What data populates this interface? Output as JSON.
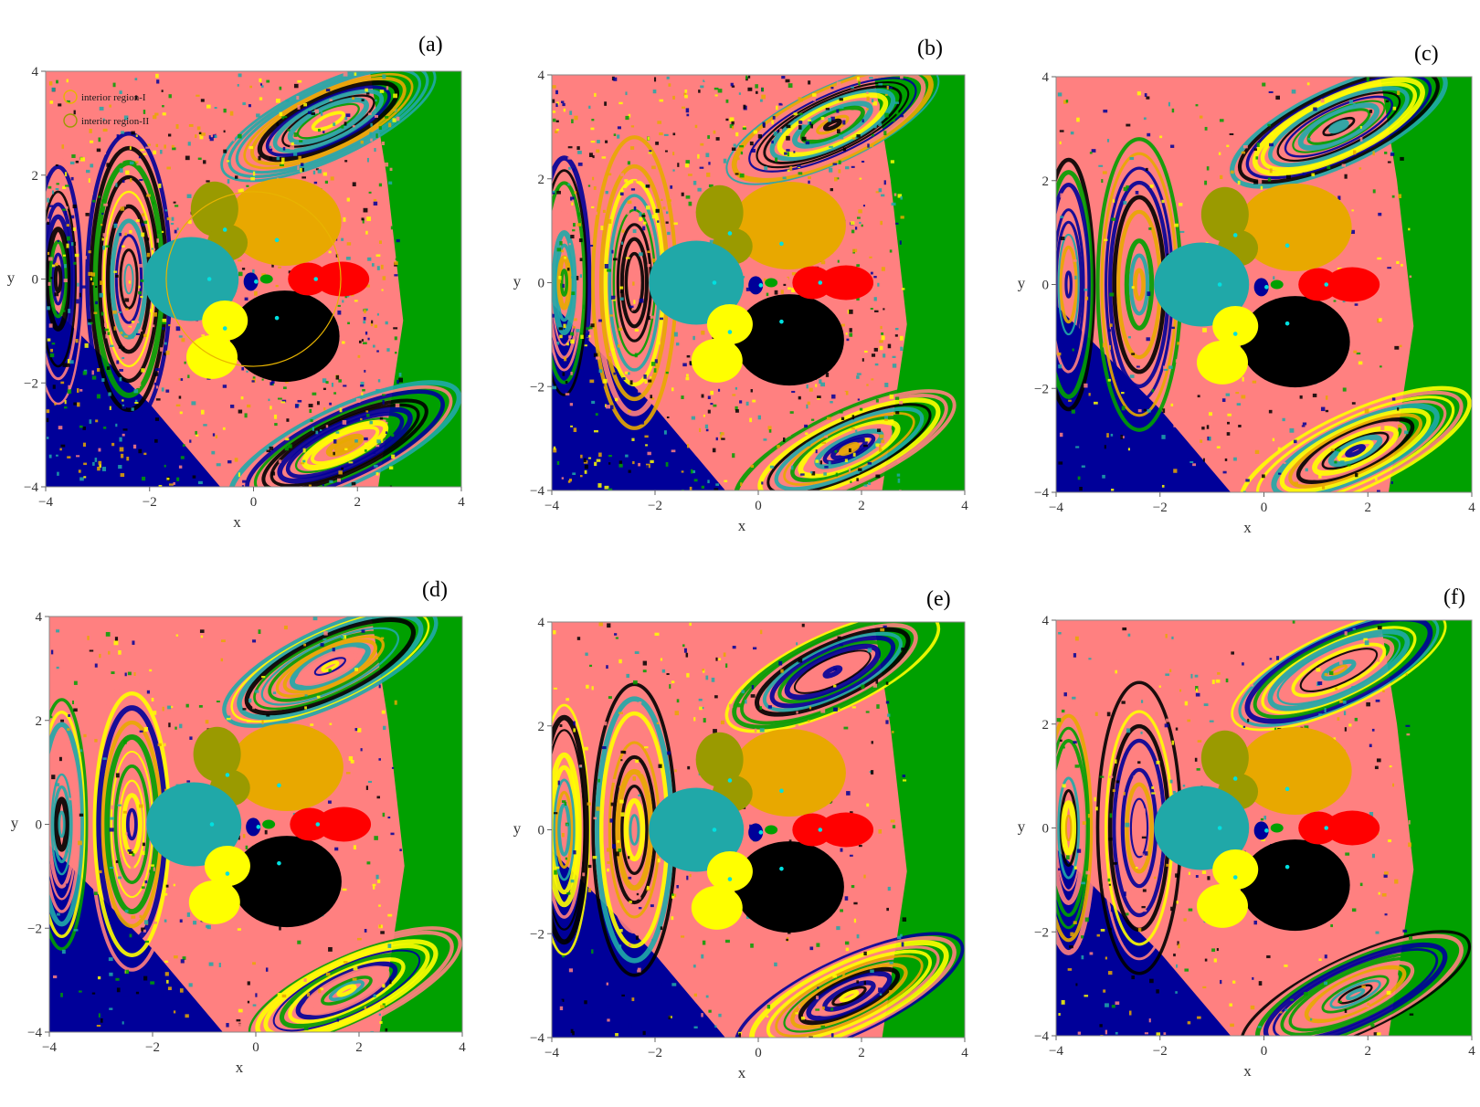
{
  "chart_data": [
    {
      "type": "heatmap",
      "panel_label": "(a)",
      "xlabel": "x",
      "ylabel": "y",
      "xlim": [
        -4,
        4
      ],
      "ylim": [
        -4,
        4
      ],
      "xticks": [
        "−4",
        "−2",
        "0",
        "2",
        "4"
      ],
      "yticks": [
        "4",
        "2",
        "0",
        "−2",
        "−4"
      ],
      "legend": {
        "placement": "top-left",
        "entries": [
          {
            "label": "interior region-I",
            "color": "#e8b400"
          },
          {
            "label": "interior region-II",
            "color": "#9a9a00"
          }
        ]
      },
      "equilibrium_points": [
        {
          "x": -0.85,
          "y": 0.0
        },
        {
          "x": -0.55,
          "y": 0.95
        },
        {
          "x": -0.55,
          "y": -0.95
        },
        {
          "x": 0.45,
          "y": 0.75
        },
        {
          "x": 0.45,
          "y": -0.75
        },
        {
          "x": 0.05,
          "y": -0.05
        },
        {
          "x": 1.2,
          "y": 0.0
        }
      ],
      "basin_colors": {
        "pink": "#ff8080",
        "green": "#00a000",
        "blue": "#000099",
        "orange": "#e8a800",
        "olive": "#9a9a00",
        "teal": "#20a8a8",
        "red": "#ff0000",
        "black": "#000000",
        "yellow": "#ffff00",
        "cyan": "#00e0e0"
      }
    },
    {
      "type": "heatmap",
      "panel_label": "(b)",
      "xlabel": "x",
      "ylabel": "y",
      "xlim": [
        -4,
        4
      ],
      "ylim": [
        -4,
        4
      ],
      "xticks": [
        "−4",
        "−2",
        "0",
        "2",
        "4"
      ],
      "yticks": [
        "4",
        "2",
        "0",
        "−2",
        "−4"
      ]
    },
    {
      "type": "heatmap",
      "panel_label": "(c)",
      "xlabel": "x",
      "ylabel": "y",
      "xlim": [
        -4,
        4
      ],
      "ylim": [
        -4,
        4
      ],
      "xticks": [
        "−4",
        "−2",
        "0",
        "2",
        "4"
      ],
      "yticks": [
        "4",
        "2",
        "0",
        "−2",
        "−4"
      ]
    },
    {
      "type": "heatmap",
      "panel_label": "(d)",
      "xlabel": "x",
      "ylabel": "y",
      "xlim": [
        -4,
        4
      ],
      "ylim": [
        -4,
        4
      ],
      "xticks": [
        "−4",
        "−2",
        "0",
        "2",
        "4"
      ],
      "yticks": [
        "4",
        "2",
        "0",
        "−2",
        "−4"
      ]
    },
    {
      "type": "heatmap",
      "panel_label": "(e)",
      "xlabel": "x",
      "ylabel": "y",
      "xlim": [
        -4,
        4
      ],
      "ylim": [
        -4,
        4
      ],
      "xticks": [
        "−4",
        "−2",
        "0",
        "2",
        "4"
      ],
      "yticks": [
        "4",
        "2",
        "0",
        "−2",
        "−4"
      ]
    },
    {
      "type": "heatmap",
      "panel_label": "(f)",
      "xlabel": "x",
      "ylabel": "y",
      "xlim": [
        -4,
        4
      ],
      "ylim": [
        -4,
        4
      ],
      "xticks": [
        "−4",
        "−2",
        "0",
        "2",
        "4"
      ],
      "yticks": [
        "4",
        "2",
        "0",
        "−2",
        "−4"
      ]
    }
  ]
}
